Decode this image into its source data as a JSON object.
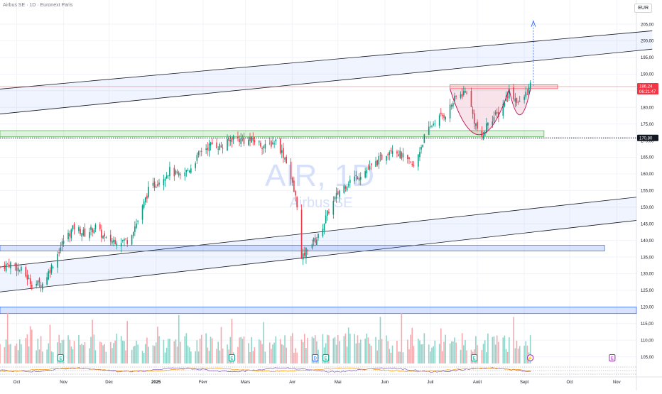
{
  "header": {
    "title": "Airbus SE · 1D · Euronext Paris",
    "currency": "EUR"
  },
  "watermark": {
    "symbol": "AIR, 1D",
    "name": "Airbus SE"
  },
  "price_tags": {
    "last_price": "186,24",
    "countdown": "06:21:47",
    "level": "170,80"
  },
  "event_markers": [
    {
      "label": "E",
      "date": "2024-10-30"
    },
    {
      "label": "E",
      "date": "2025-02-20"
    },
    {
      "label": "D",
      "date": "2025-04-16"
    },
    {
      "label": "E",
      "date": "2025-04-23"
    },
    {
      "label": "E",
      "date": "2025-07-30"
    },
    {
      "label": "⚡",
      "date": "2025-09-05"
    },
    {
      "label": "E",
      "date": "2025-10-29"
    }
  ],
  "colors": {
    "up": "#089981",
    "down": "#f23645",
    "vol_up": "#8fd3c9",
    "vol_down": "#f7a8ad",
    "zone_blue": "#2962ff",
    "zone_green": "#4caf50",
    "cup_handle": "#c2185b",
    "event_blue": "#2962ff",
    "event_green": "#089981",
    "event_purple": "#9c27b0",
    "grid": "#f0f3fa",
    "axis_text": "#131722",
    "watermark": "#d6e0fb"
  },
  "chart_data": {
    "type": "candlestick",
    "ylim": [
      103,
      208
    ],
    "date_range": [
      "2024-09-20",
      "2025-11-14"
    ],
    "yticks": [
      "105,00",
      "110,00",
      "115,00",
      "120,00",
      "125,00",
      "130,00",
      "135,00",
      "140,00",
      "145,00",
      "150,00",
      "155,00",
      "160,00",
      "165,00",
      "170,00",
      "175,00",
      "180,00",
      "185,00",
      "190,00",
      "195,00",
      "200,00",
      "205,00"
    ],
    "xticks": [
      {
        "label": "Oct",
        "date": "2024-10-01"
      },
      {
        "label": "Nov",
        "date": "2024-11-01"
      },
      {
        "label": "Déc",
        "date": "2024-12-01"
      },
      {
        "label": "2025",
        "date": "2025-01-01"
      },
      {
        "label": "Févr",
        "date": "2025-02-01"
      },
      {
        "label": "Mars",
        "date": "2025-03-01"
      },
      {
        "label": "Avr",
        "date": "2025-04-01"
      },
      {
        "label": "Mai",
        "date": "2025-05-01"
      },
      {
        "label": "Juin",
        "date": "2025-06-01"
      },
      {
        "label": "Juil",
        "date": "2025-07-01"
      },
      {
        "label": "Août",
        "date": "2025-08-01"
      },
      {
        "label": "Sept",
        "date": "2025-09-01"
      },
      {
        "label": "Oct",
        "date": "2025-10-01"
      },
      {
        "label": "Nov",
        "date": "2025-11-01"
      }
    ],
    "close_path": [
      [
        "2024-09-20",
        132
      ],
      [
        "2024-09-27",
        133
      ],
      [
        "2024-10-04",
        131
      ],
      [
        "2024-10-11",
        127
      ],
      [
        "2024-10-18",
        127
      ],
      [
        "2024-10-25",
        133
      ],
      [
        "2024-11-01",
        140
      ],
      [
        "2024-11-08",
        144
      ],
      [
        "2024-11-15",
        142
      ],
      [
        "2024-11-22",
        144
      ],
      [
        "2024-11-29",
        140
      ],
      [
        "2024-12-06",
        140
      ],
      [
        "2024-12-13",
        140
      ],
      [
        "2024-12-20",
        146
      ],
      [
        "2024-12-27",
        155
      ],
      [
        "2025-01-03",
        158
      ],
      [
        "2025-01-10",
        161
      ],
      [
        "2025-01-17",
        159
      ],
      [
        "2025-01-24",
        162
      ],
      [
        "2025-01-31",
        167
      ],
      [
        "2025-02-07",
        169
      ],
      [
        "2025-02-14",
        168
      ],
      [
        "2025-02-21",
        171
      ],
      [
        "2025-02-28",
        170
      ],
      [
        "2025-03-07",
        170
      ],
      [
        "2025-03-14",
        168
      ],
      [
        "2025-03-21",
        170
      ],
      [
        "2025-03-28",
        164
      ],
      [
        "2025-04-04",
        151
      ],
      [
        "2025-04-07",
        134
      ],
      [
        "2025-04-11",
        138
      ],
      [
        "2025-04-18",
        141
      ],
      [
        "2025-04-25",
        149
      ],
      [
        "2025-05-02",
        155
      ],
      [
        "2025-05-09",
        158
      ],
      [
        "2025-05-16",
        160
      ],
      [
        "2025-05-23",
        162
      ],
      [
        "2025-05-30",
        165
      ],
      [
        "2025-06-06",
        168
      ],
      [
        "2025-06-13",
        165
      ],
      [
        "2025-06-20",
        162
      ],
      [
        "2025-06-27",
        171
      ],
      [
        "2025-07-04",
        176
      ],
      [
        "2025-07-11",
        178
      ],
      [
        "2025-07-18",
        183
      ],
      [
        "2025-07-25",
        185
      ],
      [
        "2025-07-30",
        176
      ],
      [
        "2025-08-04",
        170
      ],
      [
        "2025-08-08",
        176
      ],
      [
        "2025-08-15",
        178
      ],
      [
        "2025-08-22",
        185
      ],
      [
        "2025-08-29",
        181
      ],
      [
        "2025-09-05",
        186.24
      ]
    ],
    "volume_range": [
      0,
      100
    ],
    "annotations": [
      "resistance zone 186",
      "support line 170,80",
      "cup and handle",
      "target arrow 205"
    ]
  }
}
